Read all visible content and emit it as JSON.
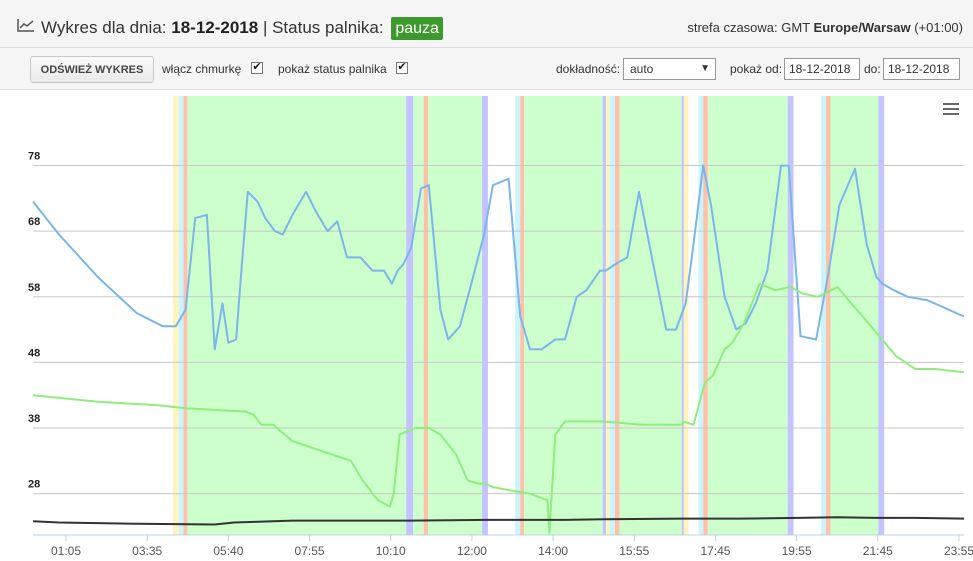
{
  "header": {
    "title_prefix": "Wykres dla dnia:",
    "date": "18-12-2018",
    "status_label": "| Status palnika:",
    "status_value": "pauza",
    "tz_prefix": "strefa czasowa: GMT",
    "tz_zone": "Europe/Warsaw",
    "tz_offset": "(+01:00)"
  },
  "toolbar": {
    "refresh_label": "ODŚWIEŻ WYKRES",
    "cloud_label": "włącz chmurkę",
    "cloud_checked": true,
    "status_label": "pokaż status palnika",
    "status_checked": true,
    "accuracy_label": "dokładność:",
    "accuracy_value": "auto",
    "from_label": "pokaż od:",
    "from_value": "18-12-2018",
    "to_label": "do:",
    "to_value": "18-12-2018"
  },
  "chart_data": {
    "type": "line",
    "y_ticks": [
      28,
      38,
      48,
      58,
      68,
      78
    ],
    "ylim": [
      21.7,
      88.6
    ],
    "x_ticks": [
      "01:05",
      "03:35",
      "05:40",
      "07:55",
      "10:10",
      "12:00",
      "14:00",
      "15:55",
      "17:45",
      "19:55",
      "21:45",
      "23:55"
    ],
    "xlim_hours": [
      0.333,
      24.25
    ],
    "grid": true,
    "colors": {
      "series_blue": "#7cb5ec",
      "series_green": "#90ed7d",
      "series_dark": "#333333",
      "band_work": "#ccffcc",
      "band_edge_purple": "#c3c3ff",
      "band_edge_orange": "#ffc0a8",
      "band_edge_cyan": "#c8f5ff",
      "band_edge_yellow": "#fff3c0"
    },
    "bands_hours": [
      [
        3.93,
        4.08,
        "edge_yellow"
      ],
      [
        4.08,
        4.2,
        "edge_cyan"
      ],
      [
        4.2,
        4.3,
        "edge_orange"
      ],
      [
        4.3,
        9.92,
        "work"
      ],
      [
        9.92,
        10.1,
        "edge_purple"
      ],
      [
        10.1,
        10.37,
        "work"
      ],
      [
        10.37,
        10.48,
        "edge_orange"
      ],
      [
        10.48,
        11.87,
        "work"
      ],
      [
        11.87,
        12.02,
        "edge_purple"
      ],
      [
        12.72,
        12.85,
        "edge_cyan"
      ],
      [
        12.85,
        12.95,
        "edge_orange"
      ],
      [
        12.95,
        14.97,
        "work"
      ],
      [
        14.97,
        15.12,
        "edge_purple"
      ],
      [
        15.05,
        15.15,
        "edge_yellow"
      ],
      [
        15.15,
        15.28,
        "edge_cyan"
      ],
      [
        15.28,
        15.4,
        "edge_orange"
      ],
      [
        15.4,
        17.0,
        "work"
      ],
      [
        17.0,
        17.12,
        "edge_purple"
      ],
      [
        17.05,
        17.17,
        "edge_yellow"
      ],
      [
        17.43,
        17.55,
        "edge_cyan"
      ],
      [
        17.55,
        17.67,
        "edge_orange"
      ],
      [
        17.67,
        19.72,
        "work"
      ],
      [
        19.72,
        19.87,
        "edge_purple"
      ],
      [
        20.58,
        20.7,
        "edge_cyan"
      ],
      [
        20.7,
        20.82,
        "edge_orange"
      ],
      [
        20.82,
        22.05,
        "work"
      ],
      [
        22.05,
        22.2,
        "edge_purple"
      ]
    ],
    "series": [
      {
        "color_key": "series_blue",
        "x": [
          0.333,
          1.0,
          2.0,
          3.0,
          3.67,
          4.0,
          4.25,
          4.5,
          4.8,
          5.0,
          5.2,
          5.35,
          5.55,
          5.7,
          5.85,
          6.1,
          6.3,
          6.55,
          6.75,
          7.0,
          7.35,
          7.6,
          7.9,
          8.15,
          8.4,
          8.75,
          9.05,
          9.35,
          9.55,
          9.7,
          9.85,
          10.05,
          10.3,
          10.5,
          10.8,
          11.0,
          11.3,
          11.55,
          11.9,
          12.15,
          12.55,
          12.85,
          13.1,
          13.4,
          13.75,
          14.0,
          14.3,
          14.55,
          14.9,
          15.05,
          15.3,
          15.6,
          15.9,
          16.3,
          16.6,
          16.85,
          17.1,
          17.3,
          17.55,
          17.75,
          18.1,
          18.4,
          18.65,
          18.9,
          19.2,
          19.55,
          19.75,
          20.05,
          20.45,
          20.75,
          21.05,
          21.45,
          21.75,
          22.0,
          22.15,
          22.45,
          22.8,
          23.3,
          24.25
        ],
        "y": [
          72.5,
          67.5,
          61,
          55.5,
          53.5,
          53.5,
          56,
          70,
          70.5,
          50,
          57,
          51,
          51.5,
          63,
          74,
          72.5,
          70,
          68,
          67.5,
          70.5,
          74,
          71,
          68,
          69.5,
          64,
          64,
          62,
          62,
          60,
          62,
          63,
          65.5,
          74.5,
          75,
          56,
          51.5,
          53.5,
          59,
          67,
          75,
          76,
          55,
          50,
          50,
          51.5,
          51.5,
          58,
          59,
          62,
          62,
          63,
          64,
          74,
          62,
          53,
          53,
          57,
          66,
          78,
          72,
          58,
          53,
          54,
          57,
          62,
          78,
          78,
          52,
          51.5,
          61,
          72,
          77.5,
          66,
          61,
          60,
          59,
          58,
          57.5,
          55
        ]
      },
      {
        "color_key": "series_green",
        "x": [
          0.333,
          2.0,
          3.5,
          4.3,
          5.8,
          6.0,
          6.2,
          6.5,
          7.0,
          7.5,
          8.0,
          8.5,
          8.8,
          9.0,
          9.05,
          9.2,
          9.5,
          9.6,
          9.75,
          10.15,
          10.5,
          10.8,
          11.2,
          11.5,
          11.8,
          11.95,
          12.15,
          12.6,
          13.1,
          13.55,
          13.6,
          13.75,
          14.0,
          14.3,
          14.6,
          15.0,
          16.0,
          17.0,
          17.05,
          17.3,
          17.6,
          17.8,
          18.1,
          18.3,
          18.6,
          19.0,
          19.4,
          19.8,
          20.1,
          20.5,
          21.0,
          21.35,
          21.65,
          22.5,
          23.0,
          23.5,
          24.25
        ],
        "y": [
          43,
          42,
          41.5,
          41,
          40.5,
          40,
          38.5,
          38.5,
          36,
          35,
          34,
          33,
          30,
          28.5,
          28,
          27,
          26,
          28,
          37,
          38,
          38,
          37,
          34,
          30,
          29.5,
          29.5,
          29,
          28.5,
          28,
          27,
          22,
          37,
          39,
          39,
          39,
          39,
          38.5,
          38.5,
          39,
          38.5,
          45,
          46,
          50,
          51,
          54,
          60,
          59,
          59.5,
          58.5,
          58,
          59.5,
          57,
          55,
          49,
          47,
          47,
          46.5
        ]
      },
      {
        "color_key": "series_dark",
        "x": [
          0.333,
          1.0,
          3.0,
          5.0,
          5.5,
          6.0,
          7.0,
          8.5,
          10.0,
          12.0,
          14.0,
          15.0,
          17.0,
          18.5,
          20.0,
          21.0,
          22.0,
          23.0,
          24.25
        ],
        "y": [
          23.8,
          23.6,
          23.4,
          23.3,
          23.6,
          23.7,
          23.9,
          23.9,
          23.9,
          24.0,
          24.0,
          24.1,
          24.2,
          24.2,
          24.3,
          24.4,
          24.3,
          24.3,
          24.2
        ]
      }
    ]
  }
}
